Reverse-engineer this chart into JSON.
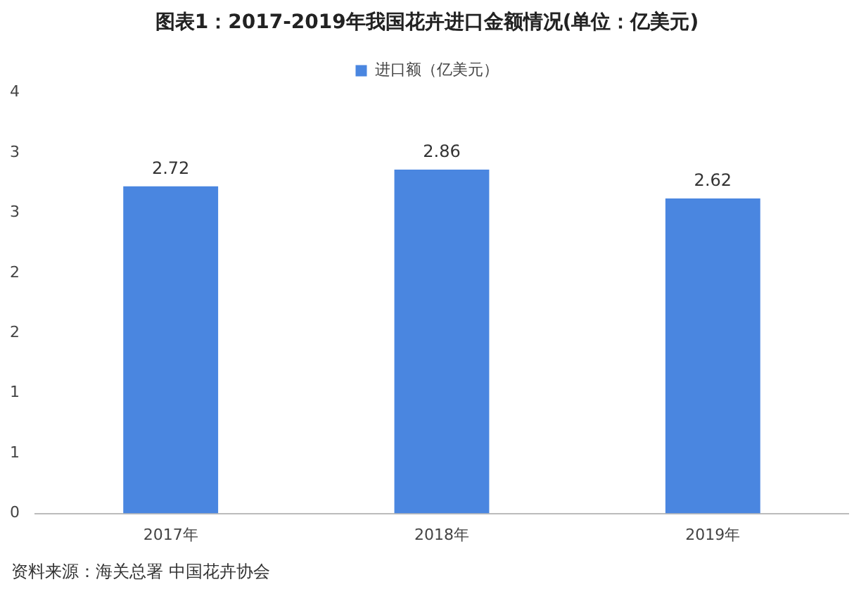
{
  "chart_data": {
    "type": "bar",
    "title": "图表1：2017-2019年我国花卉进口金额情况(单位：亿美元)",
    "categories": [
      "2017年",
      "2018年",
      "2019年"
    ],
    "series": [
      {
        "name": "进口额（亿美元）",
        "color": "#4a86e0",
        "values": [
          2.72,
          2.86,
          2.62
        ]
      }
    ],
    "ylim": [
      0,
      3.5
    ],
    "yticks": [
      0,
      {
        "value": 0.5,
        "label": "1"
      },
      1,
      {
        "value": 1.5,
        "label": "2"
      },
      2,
      {
        "value": 2.5,
        "label": "3"
      },
      3,
      {
        "value": 3.5,
        "label": "4"
      }
    ],
    "grid": false,
    "legend": "top",
    "data_labels": true,
    "annotations": [
      "资料来源：海关总署 中国花卉协会"
    ]
  }
}
